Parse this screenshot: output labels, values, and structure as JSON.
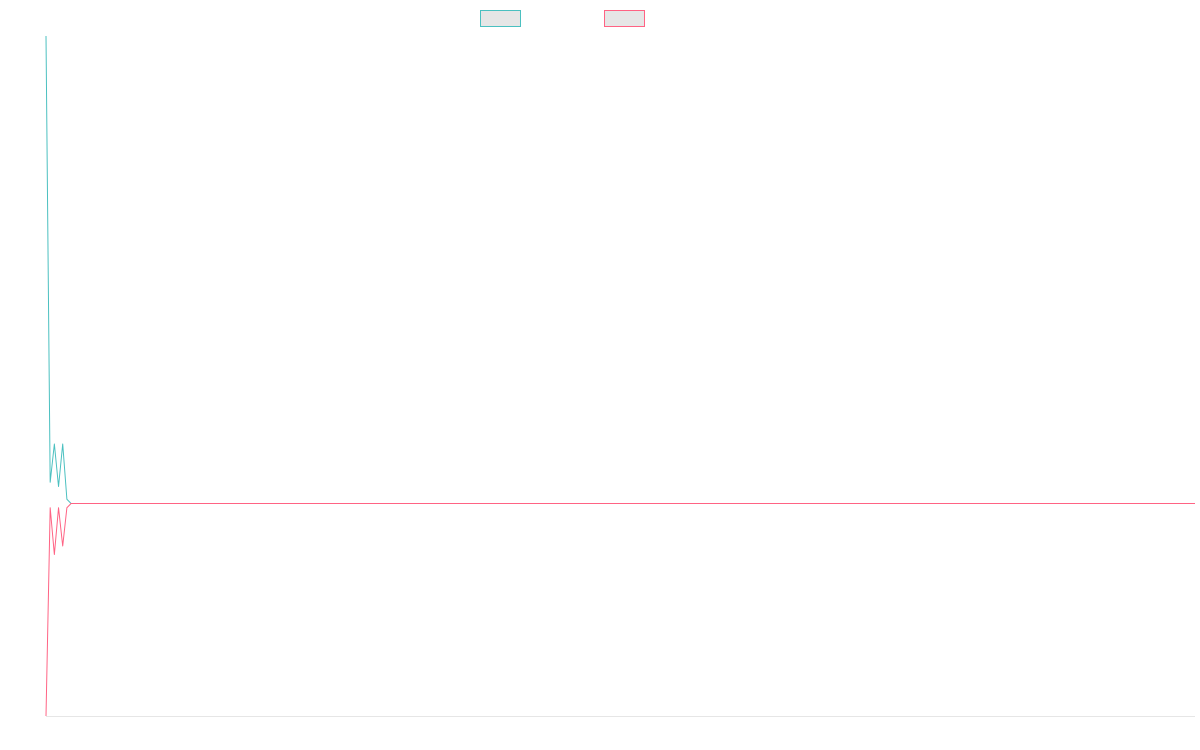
{
  "chart_data": {
    "type": "line",
    "title": "",
    "xlabel": "",
    "ylabel": "",
    "legend_position": "top-center",
    "grid": false,
    "xlim": [
      0,
      275
    ],
    "ylim": [
      -5,
      11
    ],
    "series": [
      {
        "name": "",
        "color": "#4bc0c0",
        "fill": "#e6e6e6",
        "x": [
          0,
          1,
          2,
          3,
          4,
          5,
          6,
          275
        ],
        "y": [
          11,
          0.5,
          1.4,
          0.4,
          1.4,
          0.1,
          0.0,
          0.0
        ]
      },
      {
        "name": "",
        "color": "#ff6384",
        "fill": "#e6e6e6",
        "x": [
          0,
          1,
          2,
          3,
          4,
          5,
          6,
          275
        ],
        "y": [
          -5,
          -0.1,
          -1.2,
          -0.1,
          -1.0,
          -0.1,
          0.0,
          0.0
        ]
      }
    ]
  }
}
